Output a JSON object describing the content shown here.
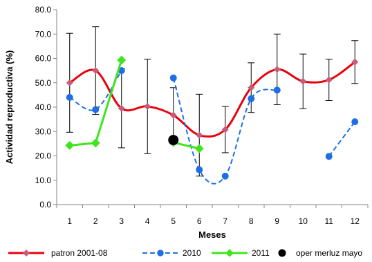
{
  "chart_data": {
    "type": "line",
    "title": "",
    "xlabel": "Meses",
    "ylabel": "Actividad reproductiva (%)",
    "x": [
      1,
      2,
      3,
      4,
      5,
      6,
      7,
      8,
      9,
      10,
      11,
      12
    ],
    "xlim": [
      0.5,
      12.5
    ],
    "ylim": [
      0,
      80
    ],
    "y_ticks": [
      "0.0",
      "10.0",
      "20.0",
      "30.0",
      "40.0",
      "50.0",
      "60.0",
      "70.0",
      "80.0"
    ],
    "x_ticks": [
      "1",
      "2",
      "3",
      "4",
      "5",
      "6",
      "7",
      "8",
      "9",
      "10",
      "11",
      "12"
    ],
    "grid": false,
    "legend_position": "bottom",
    "series": [
      {
        "name": "patron 2001-08",
        "color": "#e8000b",
        "marker": "diamond",
        "marker_color": "#c75b7a",
        "line_style": "solid-smooth",
        "points": [
          [
            1,
            50.0
          ],
          [
            2,
            55.0
          ],
          [
            3,
            39.5
          ],
          [
            4,
            40.3
          ],
          [
            5,
            36.7
          ],
          [
            6,
            28.5
          ],
          [
            7,
            30.8
          ],
          [
            8,
            48.0
          ],
          [
            9,
            55.5
          ],
          [
            10,
            50.6
          ],
          [
            11,
            51.2
          ],
          [
            12,
            58.5
          ]
        ],
        "error_upper": [
          70.3,
          73.0,
          55.8,
          59.7,
          48.0,
          45.3,
          40.3,
          58.2,
          70.0,
          61.8,
          59.7,
          67.3
        ],
        "error_lower": [
          29.7,
          37.0,
          23.3,
          20.9,
          25.4,
          11.7,
          21.3,
          37.8,
          41.0,
          39.4,
          42.7,
          49.7
        ]
      },
      {
        "name": "2010",
        "color": "#1e6fe6",
        "marker": "circle",
        "marker_color": "#1e6fe6",
        "line_style": "dashed-smooth",
        "segments": [
          [
            [
              1,
              44.0
            ],
            [
              2,
              39.0
            ],
            [
              3,
              55.0
            ]
          ],
          [
            [
              5,
              52.0
            ],
            [
              6,
              14.3
            ],
            [
              7,
              11.7
            ],
            [
              8,
              43.5
            ],
            [
              9,
              47.0
            ]
          ],
          [
            [
              11,
              19.8
            ],
            [
              12,
              34.0
            ]
          ]
        ]
      },
      {
        "name": "2011",
        "color": "#3ee51e",
        "marker": "diamond",
        "marker_color": "#3ee51e",
        "line_style": "solid",
        "segments": [
          [
            [
              1,
              24.3
            ],
            [
              2,
              25.3
            ],
            [
              3,
              59.3
            ]
          ],
          [
            [
              5,
              25.5
            ],
            [
              6,
              23.0
            ]
          ]
        ]
      },
      {
        "name": "oper merluz mayo",
        "color": "#000000",
        "marker": "circle-large",
        "marker_color": "#000000",
        "line_style": "none",
        "points": [
          [
            5,
            26.5
          ]
        ]
      }
    ]
  }
}
